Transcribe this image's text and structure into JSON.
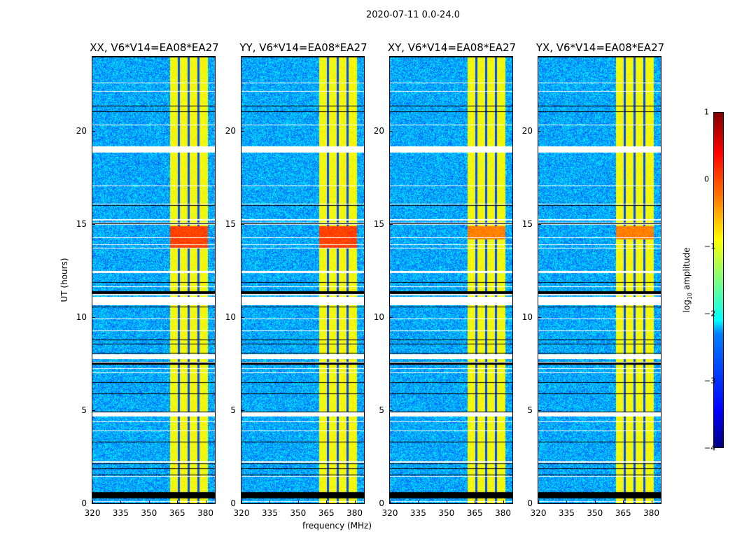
{
  "suptitle": "2020-07-11 0.0-24.0",
  "chart_data": {
    "type": "heatmap",
    "xlabel": "frequency (MHz)",
    "ylabel": "UT (hours)",
    "xlim": [
      320,
      385
    ],
    "ylim": [
      0,
      24
    ],
    "xticks": [
      "320",
      "335",
      "350",
      "365",
      "380"
    ],
    "yticks": [
      "0",
      "5",
      "10",
      "15",
      "20"
    ],
    "panels": [
      {
        "title": "XX, V6*V14=EA08*EA27",
        "hot_hours": [
          13.7,
          14.9
        ]
      },
      {
        "title": "YY, V6*V14=EA08*EA27",
        "hot_hours": [
          13.7,
          14.9
        ]
      },
      {
        "title": "XY, V6*V14=EA08*EA27",
        "hot_hours": [
          14.2,
          14.9
        ]
      },
      {
        "title": "YX, V6*V14=EA08*EA27",
        "hot_hours": [
          14.2,
          14.9
        ]
      }
    ],
    "bright_band_mhz": [
      361,
      381
    ],
    "band_gaps_mhz": [
      365.8,
      371,
      376
    ],
    "flagged_white_hours": [
      [
        18.9,
        19.2
      ],
      [
        10.7,
        11.1
      ],
      [
        7.8,
        8.0
      ],
      [
        4.7,
        4.9
      ],
      [
        11.2,
        11.3
      ],
      [
        12.4,
        12.5
      ],
      [
        15.0,
        15.1
      ]
    ],
    "flagged_black_hours": [
      [
        0.3,
        0.6
      ],
      [
        11.3,
        11.4
      ],
      [
        7.5,
        7.6
      ]
    ],
    "colorbar": {
      "label": "log10 amplitude",
      "label_main": "log",
      "label_sub": "10",
      "label_rest": " amplitude",
      "range": [
        -4,
        1
      ],
      "ticks": [
        "1",
        "0",
        "−1",
        "−2",
        "−3",
        "−4"
      ]
    }
  }
}
